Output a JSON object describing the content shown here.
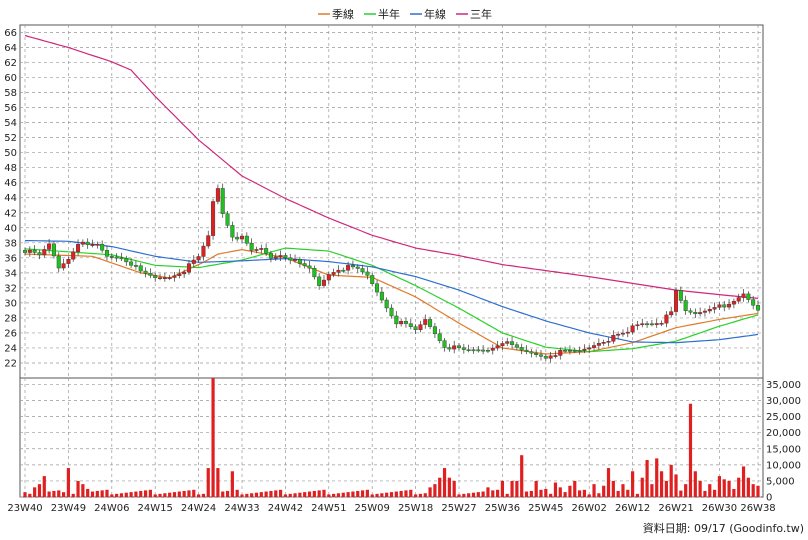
{
  "legend": [
    {
      "label": "季線",
      "color": "#e07b2a"
    },
    {
      "label": "半年",
      "color": "#2bd12b"
    },
    {
      "label": "年線",
      "color": "#2d6fd0"
    },
    {
      "label": "三年",
      "color": "#d0287a"
    }
  ],
  "footer": "資料日期: 09/17  (Goodinfo.tw)",
  "colors": {
    "up": "#e02020",
    "down": "#20c020",
    "volume": "#e02020",
    "grid": "#999999"
  },
  "chart_data": [
    {
      "type": "candlestick",
      "ylim": [
        20,
        67
      ],
      "yticks": [
        22,
        24,
        26,
        28,
        30,
        32,
        34,
        36,
        38,
        40,
        42,
        44,
        46,
        48,
        50,
        52,
        54,
        56,
        58,
        60,
        62,
        64,
        66
      ],
      "grid": true,
      "legend_position": "top-center",
      "x_tick_labels": [
        "23W40",
        "23W49",
        "24W06",
        "24W15",
        "24W24",
        "24W33",
        "24W42",
        "24W51",
        "25W09",
        "25W18",
        "25W27",
        "25W36",
        "25W45",
        "26W02",
        "26W12",
        "26W21",
        "26W30",
        "26W38"
      ],
      "x_tick_index": [
        0,
        9,
        18,
        27,
        36,
        45,
        54,
        63,
        72,
        81,
        90,
        99,
        108,
        117,
        126,
        135,
        144,
        152
      ],
      "price_anchors": [
        [
          0,
          37
        ],
        [
          3,
          36.2
        ],
        [
          5,
          37.8
        ],
        [
          7,
          34.7
        ],
        [
          9,
          36
        ],
        [
          11,
          38.1
        ],
        [
          13,
          37.5
        ],
        [
          15,
          37.7
        ],
        [
          17,
          36.2
        ],
        [
          20,
          36.1
        ],
        [
          22,
          35.3
        ],
        [
          24,
          34
        ],
        [
          27,
          33.3
        ],
        [
          30,
          33.5
        ],
        [
          33,
          34.4
        ],
        [
          36,
          36
        ],
        [
          38,
          38.9
        ],
        [
          39,
          43.5
        ],
        [
          40,
          45.3
        ],
        [
          41,
          42
        ],
        [
          43,
          39
        ],
        [
          45,
          38.6
        ],
        [
          47,
          36.8
        ],
        [
          49,
          37.2
        ],
        [
          51,
          36
        ],
        [
          53,
          36.5
        ],
        [
          55,
          36
        ],
        [
          57,
          35
        ],
        [
          59,
          34.5
        ],
        [
          61,
          32.3
        ],
        [
          63,
          33.9
        ],
        [
          65,
          34.6
        ],
        [
          67,
          34.7
        ],
        [
          69,
          34.4
        ],
        [
          71,
          33.6
        ],
        [
          73,
          31.5
        ],
        [
          75,
          29.5
        ],
        [
          77,
          27.5
        ],
        [
          79,
          27
        ],
        [
          81,
          26.3
        ],
        [
          83,
          27.8
        ],
        [
          85,
          26
        ],
        [
          87,
          24.3
        ],
        [
          89,
          24
        ],
        [
          91,
          23.6
        ],
        [
          93,
          23.7
        ],
        [
          96,
          23.8
        ],
        [
          99,
          24.9
        ],
        [
          101,
          24.2
        ],
        [
          103,
          23.6
        ],
        [
          105,
          23.3
        ],
        [
          107,
          23
        ],
        [
          108,
          22.8
        ],
        [
          109,
          23.2
        ],
        [
          111,
          23.4
        ],
        [
          113,
          23.5
        ],
        [
          115,
          23.6
        ],
        [
          117,
          24.1
        ],
        [
          119,
          24.8
        ],
        [
          121,
          25.2
        ],
        [
          123,
          25.6
        ],
        [
          125,
          26
        ],
        [
          126,
          26.9
        ],
        [
          128,
          27.3
        ],
        [
          130,
          27.4
        ],
        [
          132,
          27.6
        ],
        [
          134,
          28.6
        ],
        [
          135,
          31.5
        ],
        [
          137,
          28.9
        ],
        [
          139,
          28.6
        ],
        [
          141,
          29.1
        ],
        [
          143,
          29.7
        ],
        [
          145,
          29.2
        ],
        [
          147,
          30.1
        ],
        [
          149,
          31.2
        ],
        [
          151,
          29.8
        ],
        [
          152,
          29.2
        ]
      ],
      "ma_anchors": {
        "季線": [
          [
            0,
            36.5
          ],
          [
            14,
            36.2
          ],
          [
            24,
            34
          ],
          [
            30,
            33.3
          ],
          [
            37,
            35.4
          ],
          [
            40,
            36.5
          ],
          [
            45,
            37.1
          ],
          [
            54,
            36
          ],
          [
            63,
            33.7
          ],
          [
            72,
            33.4
          ],
          [
            81,
            30.8
          ],
          [
            90,
            27.3
          ],
          [
            99,
            24
          ],
          [
            108,
            23.2
          ],
          [
            117,
            23.5
          ],
          [
            126,
            24.7
          ],
          [
            135,
            26.7
          ],
          [
            144,
            27.8
          ],
          [
            152,
            28.6
          ]
        ],
        "半年": [
          [
            0,
            37.2
          ],
          [
            18,
            36.4
          ],
          [
            27,
            35
          ],
          [
            36,
            34.7
          ],
          [
            45,
            35.7
          ],
          [
            54,
            37.3
          ],
          [
            63,
            36.9
          ],
          [
            72,
            35
          ],
          [
            81,
            32.3
          ],
          [
            90,
            29.3
          ],
          [
            99,
            26
          ],
          [
            108,
            24.1
          ],
          [
            117,
            23.5
          ],
          [
            126,
            23.9
          ],
          [
            135,
            24.9
          ],
          [
            144,
            26.9
          ],
          [
            152,
            28.4
          ]
        ],
        "年線": [
          [
            0,
            38.3
          ],
          [
            9,
            38.2
          ],
          [
            18,
            37.5
          ],
          [
            27,
            36.2
          ],
          [
            36,
            35.4
          ],
          [
            45,
            35.6
          ],
          [
            54,
            35.9
          ],
          [
            63,
            35.5
          ],
          [
            72,
            34.8
          ],
          [
            81,
            33.5
          ],
          [
            90,
            31.7
          ],
          [
            99,
            29.5
          ],
          [
            108,
            27.6
          ],
          [
            117,
            26
          ],
          [
            126,
            24.8
          ],
          [
            135,
            24.7
          ],
          [
            144,
            25.1
          ],
          [
            152,
            25.8
          ]
        ],
        "三年": [
          [
            0,
            65.6
          ],
          [
            9,
            64
          ],
          [
            18,
            62.1
          ],
          [
            22,
            61
          ],
          [
            27,
            57.5
          ],
          [
            36,
            51.7
          ],
          [
            45,
            46.9
          ],
          [
            54,
            43.9
          ],
          [
            63,
            41.3
          ],
          [
            72,
            39
          ],
          [
            81,
            37.3
          ],
          [
            90,
            36.3
          ],
          [
            99,
            35.1
          ],
          [
            108,
            34.3
          ],
          [
            117,
            33.5
          ],
          [
            126,
            32.6
          ],
          [
            135,
            31.7
          ],
          [
            144,
            31.1
          ],
          [
            152,
            30.6
          ]
        ]
      }
    },
    {
      "type": "bar",
      "series_label": "volume",
      "ylim": [
        0,
        37000
      ],
      "yticks": [
        0,
        5000,
        10000,
        15000,
        20000,
        25000,
        30000,
        35000
      ],
      "ytick_labels": [
        "0",
        "5,000",
        "10,000",
        "15,000",
        "20,000",
        "25,000",
        "30,000",
        "35,000"
      ],
      "volume_spikes": [
        [
          0,
          1500
        ],
        [
          2,
          3000
        ],
        [
          3,
          4000
        ],
        [
          4,
          6500
        ],
        [
          8,
          1500
        ],
        [
          9,
          9000
        ],
        [
          11,
          5000
        ],
        [
          12,
          4000
        ],
        [
          13,
          2500
        ],
        [
          38,
          9000
        ],
        [
          39,
          37000
        ],
        [
          40,
          9000
        ],
        [
          43,
          8000
        ],
        [
          84,
          3000
        ],
        [
          85,
          4000
        ],
        [
          86,
          6000
        ],
        [
          87,
          9000
        ],
        [
          88,
          6000
        ],
        [
          89,
          5000
        ],
        [
          96,
          3000
        ],
        [
          99,
          5000
        ],
        [
          101,
          5000
        ],
        [
          102,
          5000
        ],
        [
          103,
          13000
        ],
        [
          106,
          5000
        ],
        [
          108,
          2500
        ],
        [
          110,
          4500
        ],
        [
          111,
          3000
        ],
        [
          113,
          3500
        ],
        [
          114,
          5000
        ],
        [
          118,
          4000
        ],
        [
          120,
          3500
        ],
        [
          121,
          9000
        ],
        [
          122,
          5000
        ],
        [
          124,
          4000
        ],
        [
          126,
          8000
        ],
        [
          128,
          6000
        ],
        [
          129,
          11500
        ],
        [
          130,
          4000
        ],
        [
          131,
          12000
        ],
        [
          132,
          8000
        ],
        [
          133,
          5000
        ],
        [
          134,
          10000
        ],
        [
          135,
          7000
        ],
        [
          136,
          2000
        ],
        [
          137,
          4000
        ],
        [
          138,
          29000
        ],
        [
          139,
          8000
        ],
        [
          140,
          5000
        ],
        [
          142,
          4000
        ],
        [
          144,
          6500
        ],
        [
          145,
          5500
        ],
        [
          146,
          5000
        ],
        [
          147,
          2500
        ],
        [
          148,
          6000
        ],
        [
          149,
          9500
        ],
        [
          150,
          6000
        ],
        [
          151,
          4000
        ],
        [
          152,
          3500
        ]
      ]
    }
  ]
}
